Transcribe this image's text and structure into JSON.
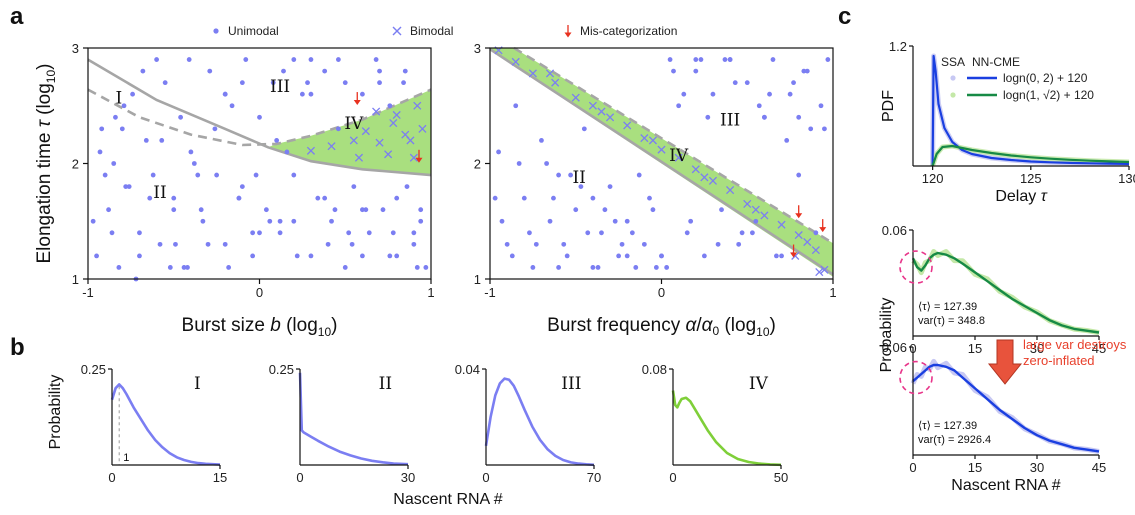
{
  "colors": {
    "unimodal": "#7b7ef2",
    "bimodal": "#7b7ef2",
    "miscat": "#e8311f",
    "region_iv": "#a9df7f",
    "boundary": "#a6a6a6",
    "ssa_blue": "#c7c8f3",
    "ssa_green": "#c4e8a8",
    "nn_blue": "#1a3fe0",
    "nn_green": "#178a45",
    "circle": "#e8358a",
    "arrow": "#e8533c"
  },
  "panel_labels": {
    "a": "a",
    "b": "b",
    "c": "c"
  },
  "legend_a": {
    "unimodal": "Unimodal",
    "bimodal": "Bimodal",
    "miscat": "Mis-categorization"
  },
  "chart_data": [
    {
      "id": "a-left",
      "type": "scatter",
      "xlabel": "Burst size b (log10)",
      "ylabel": "Elongation time τ (log10)",
      "xlim": [
        -1,
        1
      ],
      "ylim": [
        1,
        3
      ],
      "xticks": [
        "-1",
        "0",
        "1"
      ],
      "yticks": [
        "1",
        "2",
        "3"
      ],
      "regions": [
        "I",
        "II",
        "III",
        "IV"
      ],
      "boundary_solid": [
        [
          -1,
          2.9
        ],
        [
          -0.6,
          2.55
        ],
        [
          -0.2,
          2.3
        ],
        [
          0.05,
          2.14
        ],
        [
          0.3,
          2.02
        ],
        [
          0.6,
          1.95
        ],
        [
          1,
          1.9
        ]
      ],
      "boundary_dashed": [
        [
          -1,
          2.64
        ],
        [
          -0.7,
          2.4
        ],
        [
          -0.4,
          2.25
        ],
        [
          -0.1,
          2.16
        ],
        [
          0.1,
          2.17
        ],
        [
          0.3,
          2.24
        ],
        [
          0.6,
          2.38
        ],
        [
          1,
          2.64
        ]
      ],
      "unimodal_x": [
        -0.95,
        -0.92,
        -0.88,
        -0.85,
        -0.82,
        -0.78,
        -0.74,
        -0.7,
        -0.66,
        -0.62,
        -0.58,
        -0.55,
        -0.5,
        -0.46,
        -0.42,
        -0.38,
        -0.33,
        -0.29,
        -0.25,
        -0.2,
        -0.16,
        -0.12,
        -0.08,
        -0.04,
        0.0,
        0.04,
        0.08,
        0.12,
        0.16,
        0.2,
        0.25,
        0.3,
        0.34,
        0.38,
        0.42,
        0.46,
        0.5,
        0.55,
        0.6,
        0.64,
        0.68,
        0.72,
        0.76,
        0.8,
        0.85,
        0.9,
        0.94,
        0.97,
        -0.93,
        -0.86,
        -0.79,
        -0.72,
        -0.64,
        -0.57,
        -0.49,
        -0.41,
        -0.34,
        -0.26,
        -0.18,
        -0.1,
        -0.02,
        0.06,
        0.14,
        0.22,
        0.3,
        0.38,
        0.46,
        0.54,
        0.62,
        0.7,
        0.78,
        0.86,
        0.94,
        -0.97,
        -0.9,
        -0.8,
        -0.7,
        -0.6,
        -0.5,
        -0.4,
        -0.3,
        -0.2,
        -0.1,
        0.0,
        0.1,
        0.2,
        0.3,
        0.4,
        0.5,
        0.6,
        0.7,
        0.8,
        0.9,
        -0.84,
        -0.68,
        -0.52,
        -0.36,
        -0.2,
        -0.04,
        0.12,
        0.28,
        0.44,
        0.6,
        0.76,
        0.92,
        -0.76,
        -0.44,
        -0.12,
        0.2,
        0.52,
        0.84
      ],
      "unimodal_y": [
        1.2,
        2.3,
        1.6,
        2.0,
        1.1,
        1.8,
        2.6,
        1.4,
        2.2,
        1.9,
        1.3,
        2.7,
        1.7,
        2.4,
        1.1,
        2.0,
        1.5,
        2.8,
        1.9,
        1.3,
        2.5,
        1.7,
        2.9,
        1.2,
        2.4,
        1.6,
        2.7,
        1.4,
        2.1,
        1.9,
        2.6,
        1.2,
        1.7,
        2.8,
        1.5,
        2.3,
        1.1,
        1.8,
        2.6,
        1.4,
        2.9,
        1.6,
        1.2,
        1.7,
        2.8,
        1.3,
        1.6,
        1.1,
        2.1,
        1.4,
        2.5,
        1.0,
        1.7,
        2.2,
        1.3,
        2.9,
        1.6,
        2.3,
        1.1,
        2.7,
        1.9,
        1.5,
        2.8,
        1.2,
        2.6,
        1.7,
        2.9,
        1.3,
        1.6,
        2.7,
        1.4,
        1.8,
        1.5,
        1.5,
        1.9,
        2.3,
        1.2,
        2.9,
        1.6,
        2.1,
        1.3,
        2.6,
        1.8,
        1.4,
        2.2,
        1.5,
        2.9,
        1.3,
        2.7,
        1.6,
        2.8,
        1.2,
        1.4,
        2.4,
        2.8,
        1.1,
        1.9,
        2.6,
        1.4,
        1.5,
        2.7,
        1.6,
        1.2,
        2.5,
        1.1,
        1.8,
        1.1,
        1.7,
        2.9,
        1.4,
        2.7,
        1.3
      ],
      "bimodal_x": [
        0.3,
        0.42,
        0.55,
        0.62,
        0.7,
        0.78,
        0.85,
        0.9,
        0.95,
        0.68,
        0.8,
        0.88,
        0.58,
        0.75,
        0.92
      ],
      "bimodal_y": [
        2.11,
        2.15,
        2.2,
        2.28,
        2.18,
        2.35,
        2.25,
        2.05,
        2.3,
        2.45,
        2.42,
        2.2,
        2.05,
        2.08,
        2.5
      ],
      "miscat": [
        [
          0.57,
          2.48
        ],
        [
          0.93,
          1.98
        ]
      ]
    },
    {
      "id": "a-right",
      "type": "scatter",
      "xlabel": "Burst frequency α/α0 (log10)",
      "xlim": [
        -1,
        1
      ],
      "ylim": [
        1,
        3
      ],
      "xticks": [
        "-1",
        "0",
        "1"
      ],
      "yticks": [
        "1",
        "2",
        "3"
      ],
      "regions": [
        "II",
        "III",
        "IV"
      ],
      "unimodal_x": [
        -0.95,
        -0.9,
        -0.85,
        -0.8,
        -0.75,
        -0.7,
        -0.65,
        -0.6,
        -0.55,
        -0.5,
        -0.45,
        -0.4,
        -0.35,
        -0.3,
        -0.25,
        -0.2,
        -0.15,
        -0.1,
        -0.05,
        0.0,
        0.05,
        0.1,
        0.15,
        0.2,
        0.25,
        0.3,
        0.35,
        0.4,
        0.45,
        0.5,
        0.55,
        0.6,
        0.65,
        0.7,
        0.75,
        0.8,
        0.85,
        0.9,
        0.95,
        -0.93,
        -0.83,
        -0.73,
        -0.63,
        -0.53,
        -0.43,
        -0.33,
        -0.23,
        -0.13,
        -0.03,
        0.07,
        0.17,
        0.27,
        0.37,
        0.47,
        0.57,
        0.67,
        0.77,
        0.87,
        0.97,
        -0.97,
        -0.87,
        -0.77,
        -0.67,
        -0.57,
        -0.47,
        -0.37,
        -0.27,
        -0.17,
        -0.07,
        0.03,
        0.13,
        0.23,
        0.33,
        0.43,
        0.53,
        0.63,
        0.73,
        0.83,
        0.93,
        -0.6,
        -0.2,
        0.2,
        0.6,
        -0.4,
        0.0,
        0.4,
        0.8
      ],
      "unimodal_y": [
        2.1,
        1.3,
        2.5,
        1.7,
        1.1,
        2.2,
        1.5,
        1.9,
        1.2,
        1.6,
        2.3,
        1.1,
        1.4,
        1.8,
        1.2,
        1.5,
        1.1,
        1.3,
        1.6,
        1.2,
        2.9,
        2.5,
        1.4,
        2.8,
        1.2,
        2.6,
        1.6,
        2.9,
        1.3,
        2.7,
        1.5,
        2.4,
        2.9,
        1.2,
        2.6,
        1.9,
        2.8,
        1.4,
        2.3,
        1.5,
        2.0,
        1.3,
        1.7,
        1.9,
        1.4,
        1.6,
        1.3,
        1.9,
        1.1,
        2.8,
        1.5,
        2.4,
        2.9,
        1.4,
        2.5,
        1.2,
        2.7,
        2.3,
        2.9,
        1.7,
        1.2,
        1.4,
        2.0,
        1.3,
        1.8,
        1.1,
        1.5,
        1.4,
        1.7,
        1.1,
        2.6,
        2.9,
        1.3,
        2.7,
        1.4,
        2.6,
        2.2,
        2.8,
        2.5,
        1.1,
        1.2,
        2.9,
        2.4,
        1.7,
        1.2,
        2.9,
        2.4
      ],
      "bimodal_x": [
        -0.95,
        -0.85,
        -0.75,
        -0.62,
        -0.5,
        -0.4,
        -0.3,
        -0.2,
        -0.1,
        0.0,
        0.1,
        0.2,
        0.3,
        0.4,
        0.5,
        0.6,
        0.7,
        0.8,
        0.9,
        0.95,
        -0.65,
        -0.35,
        -0.05,
        0.25,
        0.55,
        0.85,
        0.78,
        0.92
      ],
      "bimodal_y": [
        2.98,
        2.88,
        2.78,
        2.7,
        2.57,
        2.5,
        2.4,
        2.33,
        2.22,
        2.12,
        2.05,
        1.95,
        1.85,
        1.77,
        1.65,
        1.55,
        1.47,
        1.38,
        1.25,
        1.08,
        2.78,
        2.45,
        2.2,
        1.88,
        1.6,
        1.32,
        1.2,
        1.06
      ],
      "miscat": [
        [
          0.8,
          1.5
        ],
        [
          0.94,
          1.38
        ],
        [
          0.77,
          1.16
        ]
      ]
    },
    {
      "id": "b-I",
      "type": "line",
      "title": "I",
      "xlim": [
        0,
        15
      ],
      "ylim": [
        0,
        0.25
      ],
      "xticks": [
        "0",
        "15"
      ],
      "ytop": "0.25",
      "marker_label": "1",
      "x": [
        0,
        0.5,
        1,
        1.5,
        2,
        3,
        4,
        5,
        6,
        7,
        8,
        9,
        10,
        11,
        12,
        13,
        14,
        15
      ],
      "y": [
        0.17,
        0.2,
        0.21,
        0.2,
        0.185,
        0.15,
        0.12,
        0.09,
        0.065,
        0.046,
        0.031,
        0.02,
        0.013,
        0.008,
        0.005,
        0.003,
        0.002,
        0.001
      ]
    },
    {
      "id": "b-II",
      "type": "line",
      "title": "II",
      "xlim": [
        0,
        30
      ],
      "ylim": [
        0,
        0.25
      ],
      "xticks": [
        "0",
        "30"
      ],
      "ytop": "0.25",
      "x": [
        0,
        0.5,
        1,
        3,
        5,
        8,
        11,
        14,
        17,
        20,
        23,
        26,
        30
      ],
      "y": [
        0.24,
        0.09,
        0.085,
        0.074,
        0.063,
        0.048,
        0.035,
        0.025,
        0.017,
        0.011,
        0.007,
        0.004,
        0.002
      ]
    },
    {
      "id": "b-III",
      "type": "line",
      "title": "III",
      "xlim": [
        0,
        70
      ],
      "ylim": [
        0,
        0.04
      ],
      "xticks": [
        "0",
        "70"
      ],
      "ytop": "0.04",
      "x": [
        0,
        3,
        6,
        9,
        12,
        15,
        18,
        21,
        25,
        30,
        35,
        40,
        45,
        50,
        55,
        60,
        65,
        70
      ],
      "y": [
        0.008,
        0.02,
        0.029,
        0.034,
        0.036,
        0.0355,
        0.033,
        0.029,
        0.023,
        0.016,
        0.0105,
        0.0065,
        0.0038,
        0.0021,
        0.0011,
        0.0006,
        0.0003,
        0.0001
      ]
    },
    {
      "id": "b-IV",
      "type": "line",
      "title": "IV",
      "xlim": [
        0,
        50
      ],
      "ylim": [
        0,
        0.08
      ],
      "xticks": [
        "0",
        "50"
      ],
      "ytop": "0.08",
      "x": [
        0,
        1,
        2,
        3,
        4,
        6,
        8,
        10,
        13,
        16,
        20,
        25,
        30,
        35,
        40,
        45,
        50
      ],
      "y": [
        0.062,
        0.05,
        0.048,
        0.052,
        0.055,
        0.056,
        0.053,
        0.047,
        0.038,
        0.029,
        0.019,
        0.01,
        0.005,
        0.0025,
        0.0012,
        0.0005,
        0.0002
      ]
    },
    {
      "id": "c-pdf",
      "type": "line",
      "xlabel": "Delay τ",
      "ylabel": "PDF",
      "xlim": [
        119,
        130
      ],
      "ylim": [
        0,
        1.2
      ],
      "xticks": [
        "120",
        "125",
        "130"
      ],
      "ytop": "1.2",
      "legend_header": [
        "SSA",
        "NN-CME"
      ],
      "series": [
        {
          "name": "logn(0, 2) + 120",
          "color": "#1a3fe0",
          "x": [
            120,
            120.05,
            120.15,
            120.3,
            120.6,
            121,
            121.5,
            122,
            123,
            124,
            125,
            126,
            127,
            128,
            129,
            130
          ],
          "y": [
            0,
            1.1,
            0.95,
            0.62,
            0.38,
            0.24,
            0.16,
            0.12,
            0.08,
            0.06,
            0.045,
            0.037,
            0.031,
            0.027,
            0.024,
            0.021
          ]
        },
        {
          "name": "logn(1, √2) + 120",
          "color": "#178a45",
          "x": [
            120,
            120.2,
            120.5,
            121,
            121.5,
            122,
            123,
            124,
            125,
            126,
            127,
            128,
            129,
            130
          ],
          "y": [
            0,
            0.12,
            0.19,
            0.2,
            0.18,
            0.16,
            0.13,
            0.105,
            0.087,
            0.073,
            0.062,
            0.053,
            0.046,
            0.04
          ]
        }
      ]
    },
    {
      "id": "c-mid",
      "type": "line",
      "xlim": [
        0,
        45
      ],
      "ylim": [
        0,
        0.06
      ],
      "xticks": [
        "0",
        "15",
        "30",
        "45"
      ],
      "ytop": "0.06",
      "annotations": [
        "⟨τ⟩ = 127.39",
        "var(τ) = 348.8"
      ],
      "x": [
        0,
        1,
        2,
        3,
        4,
        5,
        6,
        8,
        10,
        12,
        15,
        18,
        21,
        24,
        27,
        30,
        33,
        36,
        39,
        42,
        45
      ],
      "y": [
        0.044,
        0.039,
        0.037,
        0.04,
        0.044,
        0.046,
        0.047,
        0.046,
        0.044,
        0.041,
        0.036,
        0.031,
        0.026,
        0.021,
        0.017,
        0.013,
        0.009,
        0.006,
        0.004,
        0.003,
        0.002
      ]
    },
    {
      "id": "c-bot",
      "type": "line",
      "xlabel": "Nascent RNA #",
      "ylabel": "Probability",
      "xlim": [
        0,
        45
      ],
      "ylim": [
        0,
        0.06
      ],
      "xticks": [
        "0",
        "15",
        "30",
        "45"
      ],
      "ytop": "0.06",
      "annotations": [
        "⟨τ⟩ = 127.39",
        "var(τ) = 2926.4"
      ],
      "arrow_text": [
        "large var destroys",
        "zero-inflated"
      ],
      "x": [
        0,
        1,
        2,
        3,
        4,
        5,
        6,
        8,
        10,
        12,
        15,
        18,
        21,
        24,
        27,
        30,
        33,
        36,
        39,
        42,
        45
      ],
      "y": [
        0.041,
        0.043,
        0.045,
        0.047,
        0.049,
        0.05,
        0.05,
        0.049,
        0.047,
        0.043,
        0.037,
        0.031,
        0.025,
        0.02,
        0.015,
        0.011,
        0.008,
        0.006,
        0.004,
        0.003,
        0.002
      ]
    }
  ],
  "b_xlabel": "Nascent RNA #",
  "b_ylabel": "Probability"
}
